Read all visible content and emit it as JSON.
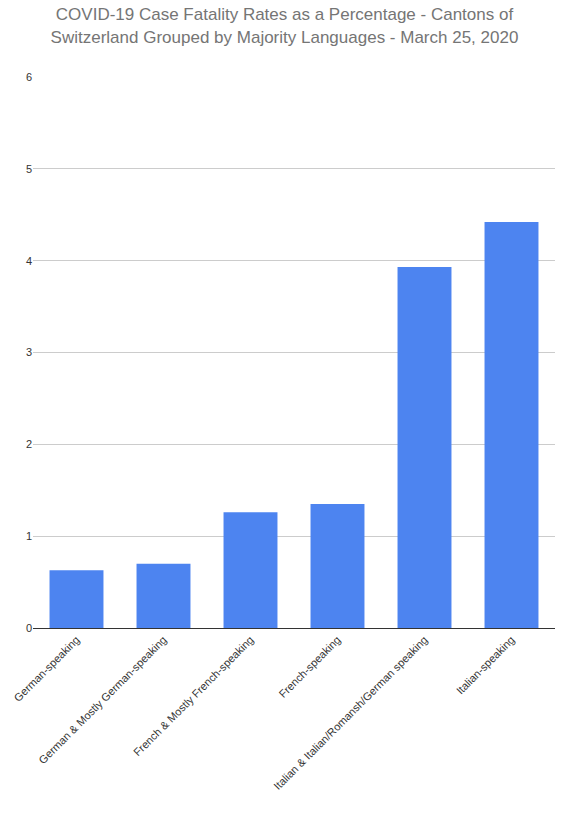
{
  "chart_data": {
    "type": "bar",
    "title": "COVID-19 Case Fatality Rates as a Percentage - Cantons of\nSwitzerland Grouped by Majority Languages - March 25, 2020",
    "categories": [
      "German-speaking",
      "German & Mostly German-speaking",
      "French & Mostly French-speaking",
      "French-speaking",
      "Italian & Italian/Romansh/German speaking",
      "Italian-speaking"
    ],
    "values": [
      0.63,
      0.7,
      1.26,
      1.35,
      3.93,
      4.42
    ],
    "color": "#4d84f0",
    "ylim": [
      0,
      6
    ],
    "yticks": [
      0,
      1,
      2,
      3,
      4,
      5,
      6
    ],
    "grid": true
  }
}
